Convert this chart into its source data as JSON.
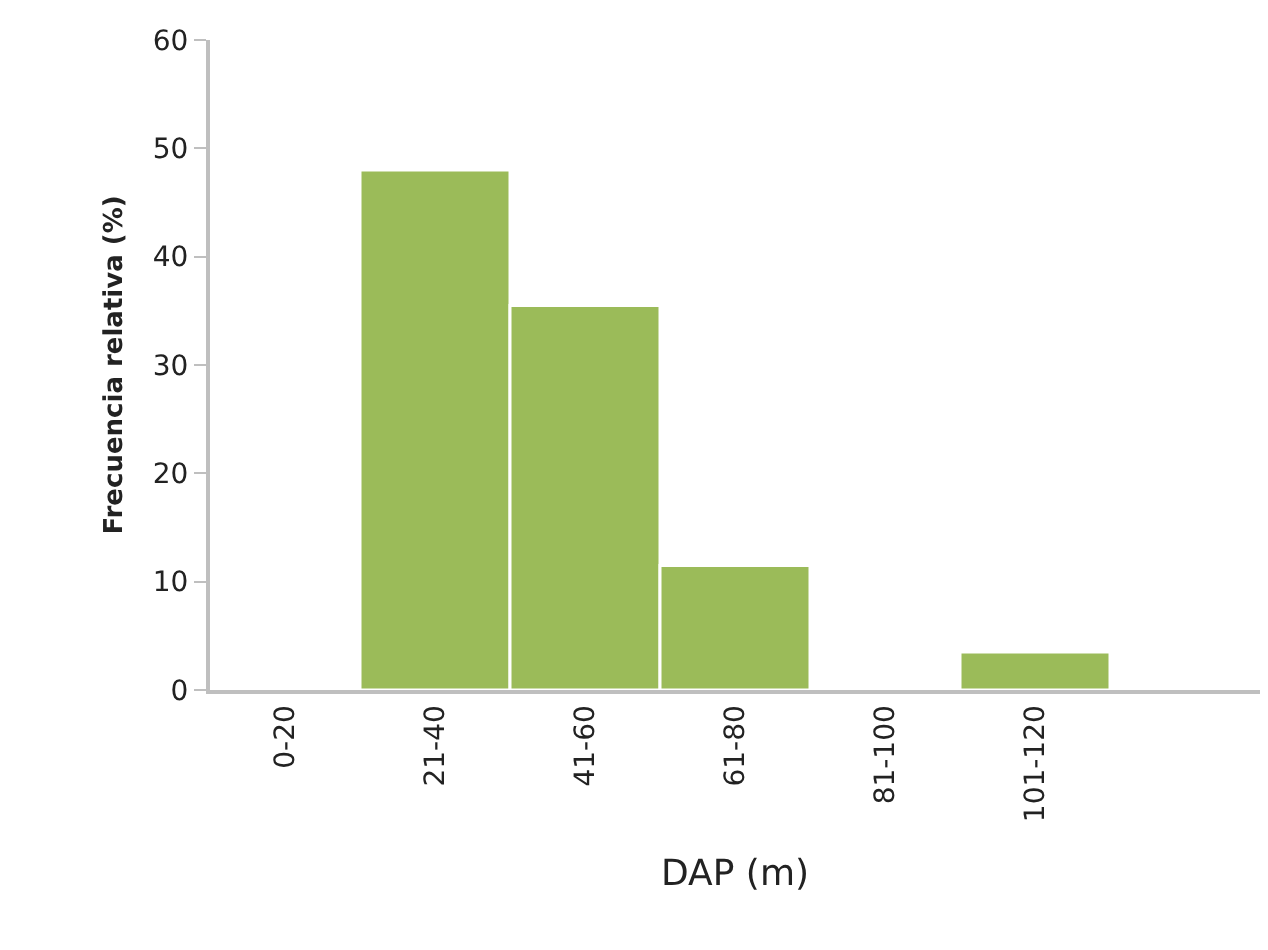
{
  "chart_data": {
    "type": "bar",
    "xlabel": "DAP (m)",
    "ylabel": "Frecuencia relativa (%)",
    "categories": [
      "0-20",
      "21-40",
      "41-60",
      "61-80",
      "81-100",
      "101-120",
      null
    ],
    "values": [
      0,
      48,
      35.5,
      11.5,
      0,
      3.5,
      null
    ],
    "color": "#9bbb59",
    "ylim": [
      0,
      60
    ],
    "yticks": [
      0,
      10,
      20,
      30,
      40,
      50,
      60
    ],
    "grid": false
  }
}
